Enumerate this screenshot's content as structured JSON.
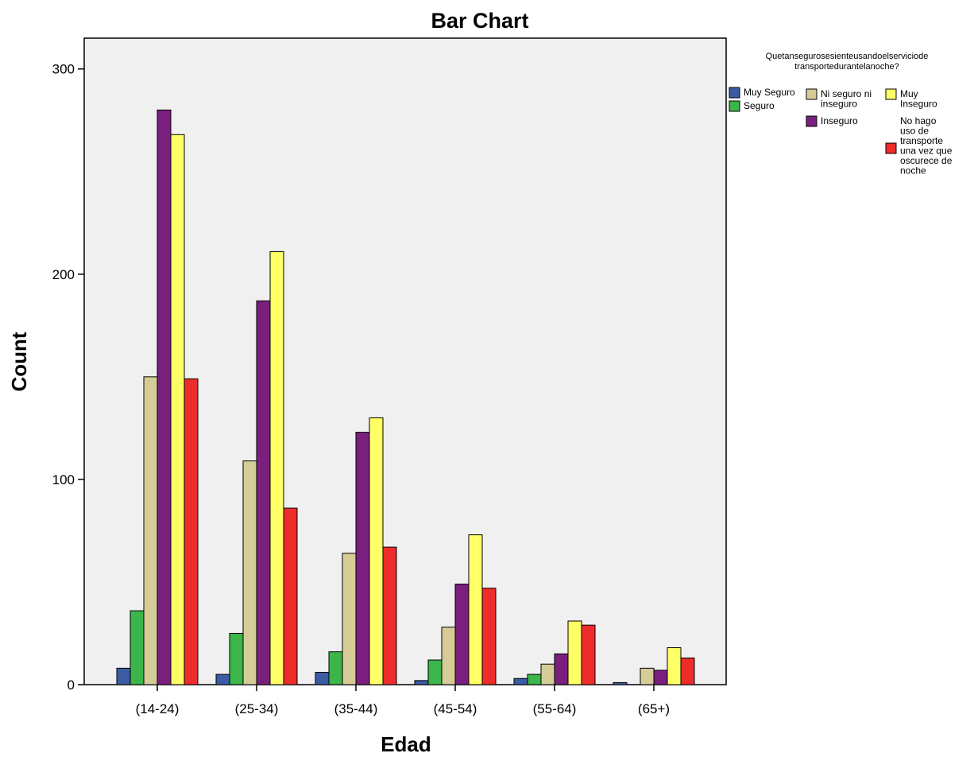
{
  "chart_data": {
    "type": "bar",
    "title": "Bar Chart",
    "xlabel": "Edad",
    "ylabel": "Count",
    "ylim": [
      0,
      315
    ],
    "yticks": [
      0,
      100,
      200,
      300
    ],
    "ytick_labels": [
      "0",
      "100",
      "200",
      "300"
    ],
    "categories": [
      "(14-24)",
      "(25-34)",
      "(35-44)",
      "(45-54)",
      "(55-64)",
      "(65+)"
    ],
    "grid": false,
    "legend_placement": "right",
    "legend_title_lines": [
      "Quetansegurosesienteusandoelserviciode",
      "transportedurantelanoche?"
    ],
    "series": [
      {
        "name": "Muy Seguro",
        "name_lines": [
          "Muy Seguro"
        ],
        "color": "#3b5ba5",
        "values": [
          8,
          5,
          6,
          2,
          3,
          1
        ]
      },
      {
        "name": "Seguro",
        "name_lines": [
          "Seguro"
        ],
        "color": "#3cb54a",
        "values": [
          36,
          25,
          16,
          12,
          5,
          0
        ]
      },
      {
        "name": "Ni seguro ni inseguro",
        "name_lines": [
          "Ni seguro ni",
          "inseguro"
        ],
        "color": "#d6cc98",
        "values": [
          150,
          109,
          64,
          28,
          10,
          8
        ]
      },
      {
        "name": "Inseguro",
        "name_lines": [
          "Inseguro"
        ],
        "color": "#7b1f7e",
        "values": [
          280,
          187,
          123,
          49,
          15,
          7
        ]
      },
      {
        "name": "Muy Inseguro",
        "name_lines": [
          "Muy",
          "Inseguro"
        ],
        "color": "#ffff66",
        "values": [
          268,
          211,
          130,
          73,
          31,
          18
        ]
      },
      {
        "name": "No hago uso de transporte una vez que oscurece de noche",
        "name_lines": [
          "No hago",
          "uso de",
          "transporte",
          "una vez que",
          "oscurece de",
          "noche"
        ],
        "color": "#ee2c2c",
        "values": [
          149,
          86,
          67,
          47,
          29,
          13
        ]
      }
    ]
  }
}
